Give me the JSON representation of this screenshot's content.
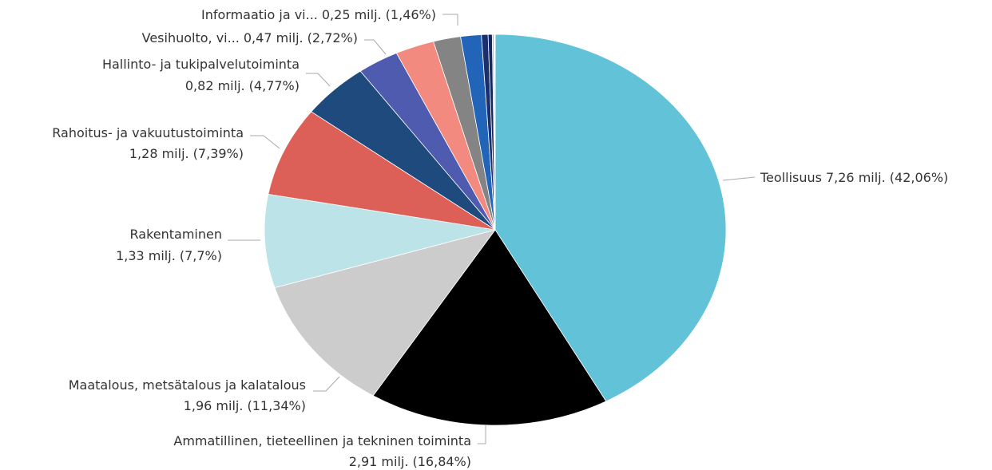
{
  "chart_data": {
    "type": "pie",
    "categories": [
      "Teollisuus",
      "Ammatillinen, tieteellinen ja tekninen toiminta",
      "Maatalous, metsätalous ja kalatalous",
      "Rakentaminen",
      "Rahoitus- ja vakuutustoiminta",
      "Hallinto- ja tukipalvelutoiminta",
      null,
      "Vesihuolto, vi...",
      null,
      "Informaatio ja vi...",
      null,
      null,
      null,
      null,
      null
    ],
    "values": [
      7.26,
      2.91,
      1.96,
      1.33,
      1.28,
      0.82,
      0.5,
      0.47,
      0.33,
      0.25,
      0.08,
      0.05,
      0.02,
      0.01,
      0.005
    ],
    "value_labels": [
      "7,26 milj. (42,06%)",
      "2,91 milj. (16,84%)",
      "1,96 milj. (11,34%)",
      "1,33 milj. (7,7%)",
      "1,28 milj. (7,39%)",
      "0,82 milj. (4,77%)",
      null,
      "0,47 milj. (2,72%)",
      null,
      "0,25 milj. (1,46%)",
      null,
      null,
      null,
      null,
      null
    ],
    "colors": [
      "#62c2d8",
      "#000000",
      "#cccccc",
      "#bce3e8",
      "#dc6058",
      "#1f4a7e",
      "#4e5bae",
      "#f28a80",
      "#848484",
      "#2264b8",
      "#1b2f6e",
      "#14285a",
      "#a9b8e0",
      "#e889a8",
      "#f0a020"
    ]
  }
}
